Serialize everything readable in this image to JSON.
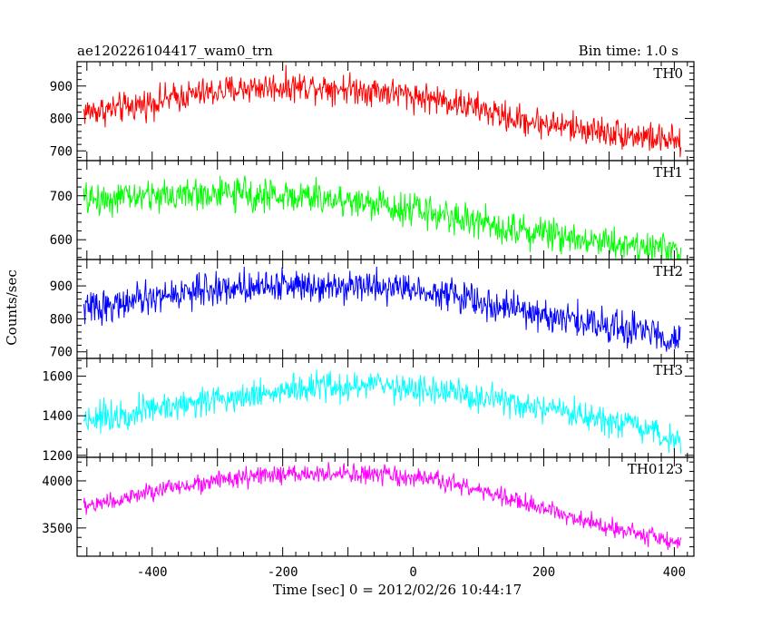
{
  "chart_data": {
    "type": "line",
    "title": "ae120226104417_wam0_trn",
    "subtitle": "Bin time: 1.0 s",
    "xlabel": "Time [sec] 0 = 2012/02/26 10:44:17",
    "ylabel": "Counts/sec",
    "xlim": [
      -515,
      430
    ],
    "x_ticks": [
      -400,
      -200,
      0,
      200,
      400
    ],
    "panels": [
      {
        "name": "TH0",
        "color": "#ff0000",
        "ylim": [
          670,
          975
        ],
        "y_ticks": [
          700,
          800,
          900
        ],
        "trend_x": [
          -510,
          -450,
          -350,
          -250,
          -150,
          -50,
          50,
          100,
          150,
          250,
          350,
          410
        ],
        "trend_y": [
          820,
          830,
          870,
          895,
          900,
          885,
          855,
          830,
          800,
          770,
          745,
          725
        ],
        "noise": 40
      },
      {
        "name": "TH1",
        "color": "#00ff00",
        "ylim": [
          555,
          780
        ],
        "y_ticks": [
          600,
          700
        ],
        "trend_x": [
          -510,
          -400,
          -300,
          -200,
          -100,
          0,
          100,
          200,
          300,
          410
        ],
        "trend_y": [
          690,
          700,
          705,
          700,
          690,
          670,
          640,
          615,
          595,
          575
        ],
        "noise": 32
      },
      {
        "name": "TH2",
        "color": "#0000ff",
        "ylim": [
          680,
          980
        ],
        "y_ticks": [
          700,
          800,
          900
        ],
        "trend_x": [
          -510,
          -450,
          -350,
          -250,
          -150,
          -50,
          50,
          100,
          200,
          300,
          410
        ],
        "trend_y": [
          830,
          845,
          880,
          900,
          905,
          900,
          880,
          850,
          810,
          780,
          740
        ],
        "noise": 42
      },
      {
        "name": "TH3",
        "color": "#00ffff",
        "ylim": [
          1190,
          1690
        ],
        "y_ticks": [
          1200,
          1400,
          1600
        ],
        "trend_x": [
          -510,
          -450,
          -350,
          -250,
          -150,
          -50,
          50,
          150,
          250,
          350,
          410
        ],
        "trend_y": [
          1380,
          1410,
          1460,
          1510,
          1540,
          1555,
          1520,
          1460,
          1400,
          1330,
          1270
        ],
        "noise": 65
      },
      {
        "name": "TH0123",
        "color": "#ff00ff",
        "ylim": [
          3200,
          4250
        ],
        "y_ticks": [
          3500,
          4000
        ],
        "trend_x": [
          -510,
          -450,
          -350,
          -250,
          -150,
          -50,
          50,
          100,
          200,
          300,
          410
        ],
        "trend_y": [
          3720,
          3800,
          3960,
          4040,
          4080,
          4060,
          3990,
          3900,
          3700,
          3520,
          3330
        ],
        "noise": 85
      }
    ]
  }
}
